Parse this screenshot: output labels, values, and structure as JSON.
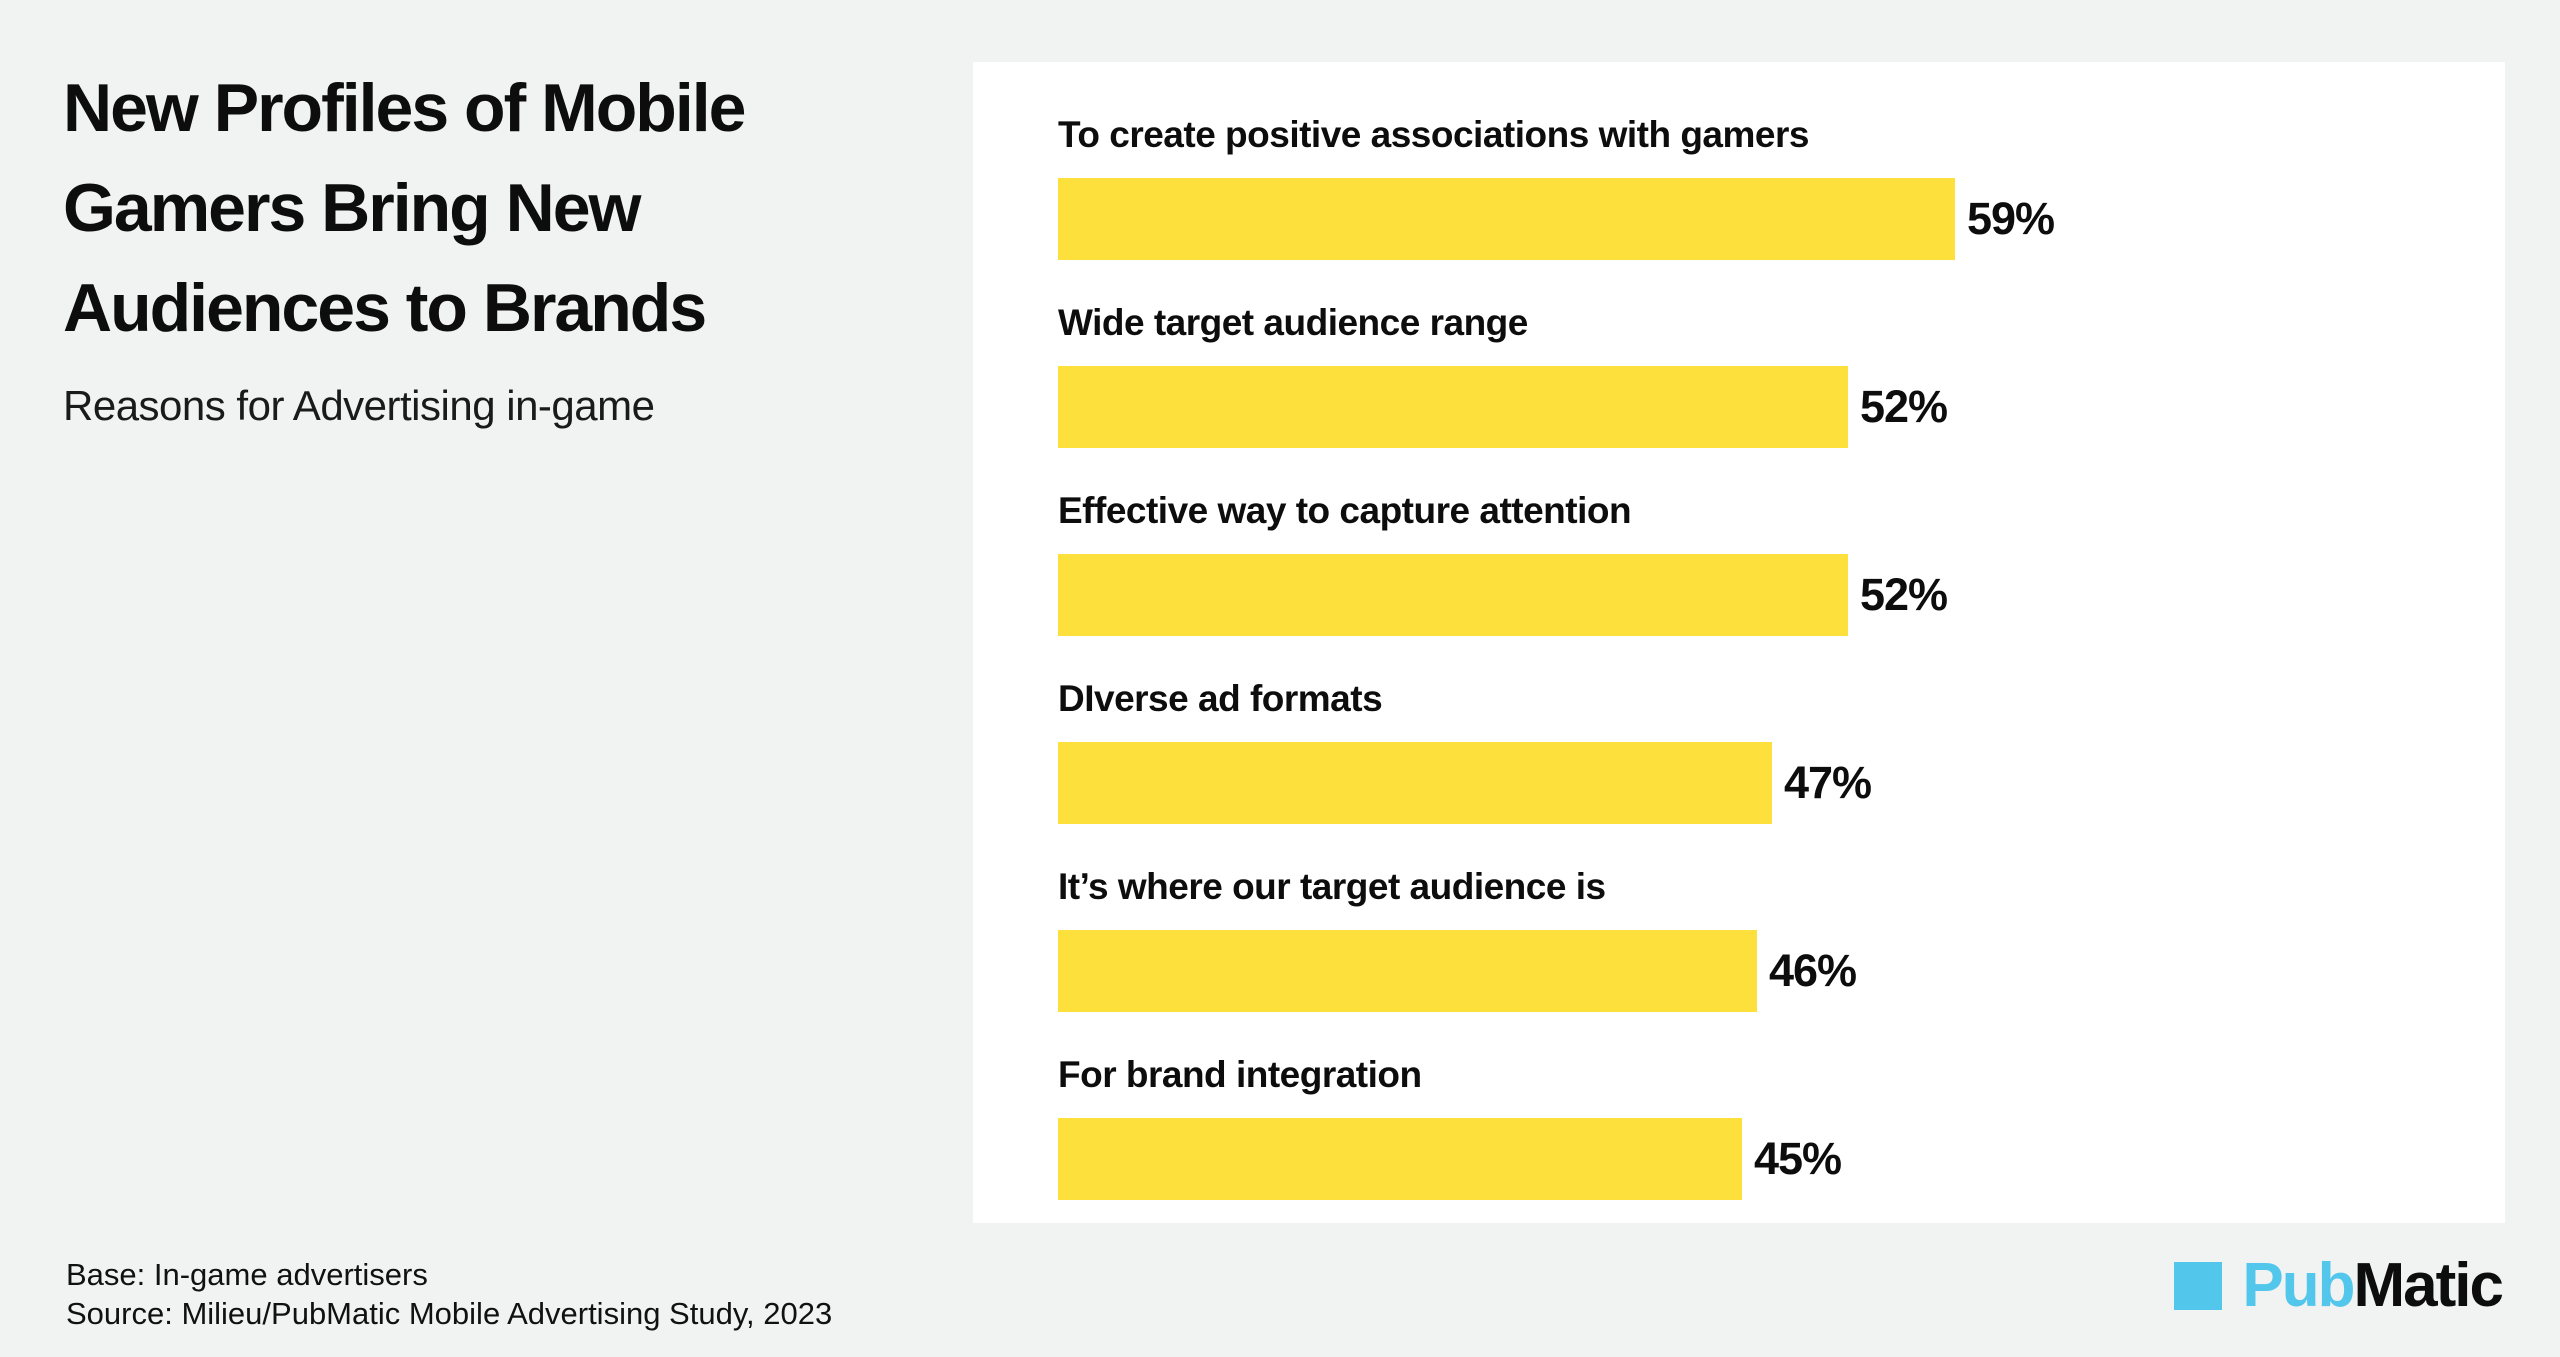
{
  "page": {
    "background_color": "#f1f2f2",
    "card_color": "#ffffff"
  },
  "header": {
    "title_lines": [
      "New Profiles of Mobile",
      "Gamers Bring New",
      "Audiences to Brands"
    ],
    "subtitle": "Reasons for Advertising in-game"
  },
  "chart_data": {
    "type": "bar",
    "orientation": "horizontal",
    "title": "Reasons for Advertising in-game",
    "categories": [
      "To create positive associations with gamers",
      "Wide target audience range",
      "Effective way to capture attention",
      "DIverse ad formats",
      "It’s where our target audience is",
      "For brand integration"
    ],
    "values": [
      59,
      52,
      52,
      47,
      46,
      45
    ],
    "value_suffix": "%",
    "bar_color": "#fde03c",
    "xlim": [
      0,
      100
    ],
    "grid": false,
    "axes_visible": false,
    "data_labels": "end-of-bar"
  },
  "footer": {
    "base": "Base: In-game advertisers",
    "source": "Source: Milieu/PubMatic Mobile Advertising Study, 2023"
  },
  "logo": {
    "square_color": "#53c6ec",
    "text_blue": "Pub",
    "text_black": "Matic",
    "blue_color": "#53c6ec"
  }
}
